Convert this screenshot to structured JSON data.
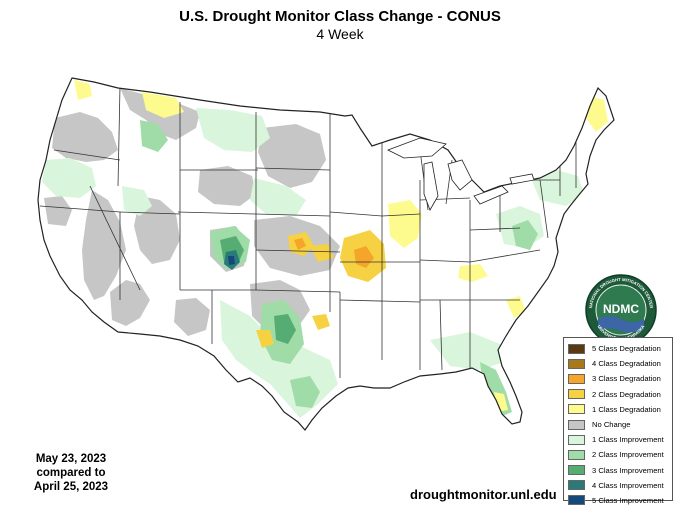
{
  "header": {
    "title": "U.S. Drought Monitor Class Change - CONUS",
    "subtitle": "4 Week"
  },
  "legend": {
    "items": [
      {
        "label": "5 Class Degradation",
        "color": "#5a3a12"
      },
      {
        "label": "4 Class Degradation",
        "color": "#a8781c"
      },
      {
        "label": "3 Class Degradation",
        "color": "#f4a52a"
      },
      {
        "label": "2 Class Degradation",
        "color": "#f6d142"
      },
      {
        "label": "1 Class Degradation",
        "color": "#fdfb8e"
      },
      {
        "label": "No Change",
        "color": "#c6c6c6"
      },
      {
        "label": "1 Class Improvement",
        "color": "#d9f5dc"
      },
      {
        "label": "2 Class Improvement",
        "color": "#a0dca8"
      },
      {
        "label": "3 Class Improvement",
        "color": "#55ad73"
      },
      {
        "label": "4 Class Improvement",
        "color": "#2a7a7a"
      },
      {
        "label": "5 Class Improvement",
        "color": "#15497a"
      }
    ]
  },
  "dates": {
    "line1": "May 23, 2023",
    "line2": "compared to",
    "line3": "April 25, 2023"
  },
  "footer": {
    "url": "droughtmonitor.unl.edu"
  },
  "logo": {
    "text": "NDMC",
    "ring_top": "NATIONAL DROUGHT MITIGATION CENTER",
    "ring_bottom": "UNIVERSITY OF NEBRASKA"
  }
}
